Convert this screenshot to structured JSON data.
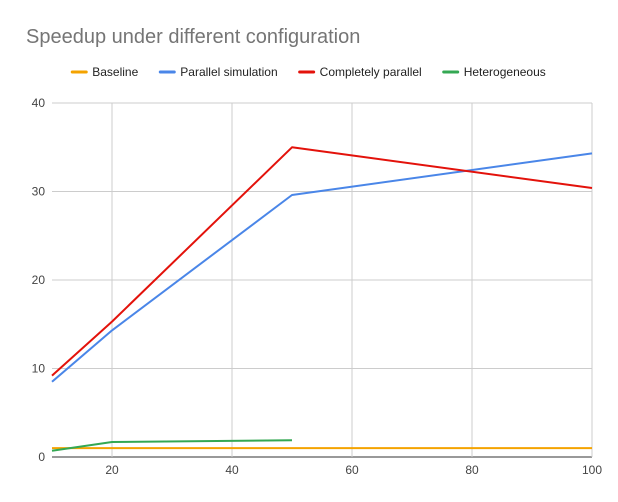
{
  "chart_data": {
    "type": "line",
    "title": "Speedup under different configuration",
    "xlabel": "",
    "ylabel": "",
    "xlim": [
      10,
      100
    ],
    "ylim": [
      0,
      40
    ],
    "x_ticks": [
      20,
      40,
      60,
      80,
      100
    ],
    "y_ticks": [
      0,
      10,
      20,
      30,
      40
    ],
    "grid": true,
    "legend_position": "top",
    "series": [
      {
        "name": "Baseline",
        "color": "#f4a300",
        "points": [
          [
            10,
            1
          ],
          [
            20,
            1
          ],
          [
            50,
            1
          ],
          [
            100,
            1
          ]
        ]
      },
      {
        "name": "Parallel simulation",
        "color": "#4a86e8",
        "points": [
          [
            10,
            8.5
          ],
          [
            20,
            14.3
          ],
          [
            50,
            29.6
          ],
          [
            100,
            34.3
          ]
        ]
      },
      {
        "name": "Completely parallel",
        "color": "#e3120b",
        "points": [
          [
            10,
            9.2
          ],
          [
            20,
            15.3
          ],
          [
            50,
            35.0
          ],
          [
            100,
            30.4
          ]
        ]
      },
      {
        "name": "Heterogeneous",
        "color": "#34a853",
        "points": [
          [
            10,
            0.7
          ],
          [
            20,
            1.7
          ],
          [
            50,
            1.9
          ]
        ]
      }
    ]
  }
}
